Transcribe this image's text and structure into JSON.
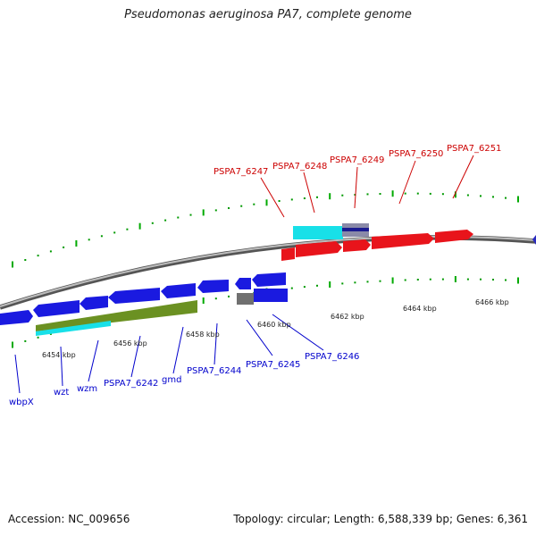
{
  "title": "Pseudomonas aeruginosa PA7, complete genome",
  "footer": {
    "accession": "Accession: NC_009656",
    "topology": "Topology: circular; Length: 6,588,339 bp; Genes: 6,361"
  },
  "colors": {
    "forward_gene": "#e8141b",
    "reverse_gene": "#1a1ae0",
    "forward_label": "#cc0000",
    "reverse_label": "#0000cc",
    "rna_cyan": "#18e0e8",
    "olive": "#6b9122",
    "grey_feature": "#707070",
    "backbone": "#888888",
    "tick_major": "#00aa00",
    "tick_minor": "#009900"
  },
  "ticks": {
    "major_labels": [
      "6454 kbp",
      "6456 kbp",
      "6458 kbp",
      "6460 kbp",
      "6462 kbp",
      "6464 kbp",
      "6466 kbp"
    ]
  },
  "top_labels": [
    "PSPA7_6247",
    "PSPA7_6248",
    "PSPA7_6249",
    "PSPA7_6250",
    "PSPA7_6251"
  ],
  "bottom_labels": [
    "wbpX",
    "wzt",
    "wzm",
    "PSPA7_6242",
    "gmd",
    "PSPA7_6244",
    "PSPA7_6245",
    "PSPA7_6246"
  ]
}
